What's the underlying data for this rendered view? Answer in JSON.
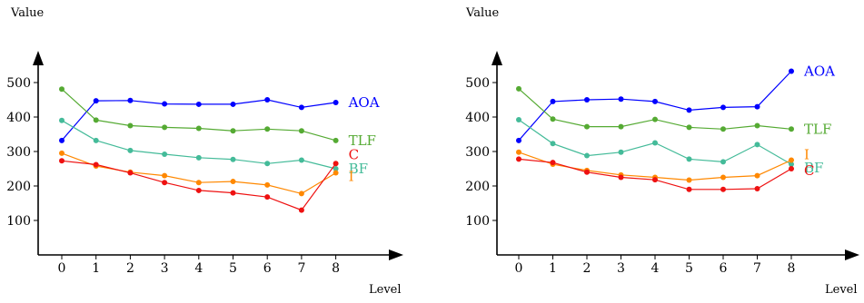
{
  "chart_data": [
    {
      "type": "line",
      "title": "",
      "xlabel": "Level",
      "ylabel": "Value",
      "x": [
        0,
        1,
        2,
        3,
        4,
        5,
        6,
        7,
        8
      ],
      "ylim": [
        0,
        550
      ],
      "yticks": [
        "100",
        "200",
        "300",
        "400",
        "500"
      ],
      "grid": false,
      "legend": "end-of-line labels",
      "series": [
        {
          "name": "AOA",
          "color": "#0000ff",
          "values": [
            332,
            447,
            448,
            438,
            437,
            437,
            450,
            428,
            442
          ]
        },
        {
          "name": "TLF",
          "color": "#55aa33",
          "values": [
            481,
            391,
            375,
            370,
            367,
            360,
            365,
            360,
            332
          ]
        },
        {
          "name": "BF",
          "color": "#44bb99",
          "values": [
            390,
            332,
            303,
            292,
            282,
            277,
            265,
            275,
            250
          ]
        },
        {
          "name": "I",
          "color": "#ff8800",
          "values": [
            295,
            258,
            240,
            230,
            210,
            213,
            203,
            178,
            238
          ]
        },
        {
          "name": "C",
          "color": "#ee1111",
          "values": [
            273,
            262,
            238,
            210,
            187,
            180,
            168,
            130,
            265
          ]
        }
      ]
    },
    {
      "type": "line",
      "title": "",
      "xlabel": "Level",
      "ylabel": "Value",
      "x": [
        0,
        1,
        2,
        3,
        4,
        5,
        6,
        7,
        8
      ],
      "ylim": [
        0,
        550
      ],
      "yticks": [
        "100",
        "200",
        "300",
        "400",
        "500"
      ],
      "grid": false,
      "legend": "end-of-line labels",
      "series": [
        {
          "name": "AOA",
          "color": "#0000ff",
          "values": [
            332,
            445,
            450,
            452,
            445,
            420,
            428,
            430,
            533
          ]
        },
        {
          "name": "TLF",
          "color": "#55aa33",
          "values": [
            482,
            394,
            372,
            372,
            393,
            370,
            365,
            375,
            365
          ]
        },
        {
          "name": "BF",
          "color": "#44bb99",
          "values": [
            392,
            323,
            288,
            298,
            325,
            278,
            270,
            320,
            263
          ]
        },
        {
          "name": "I",
          "color": "#ff8800",
          "values": [
            298,
            263,
            245,
            232,
            225,
            217,
            225,
            230,
            275
          ]
        },
        {
          "name": "C",
          "color": "#ee1111",
          "values": [
            278,
            268,
            240,
            225,
            218,
            190,
            190,
            192,
            250
          ]
        }
      ]
    }
  ]
}
